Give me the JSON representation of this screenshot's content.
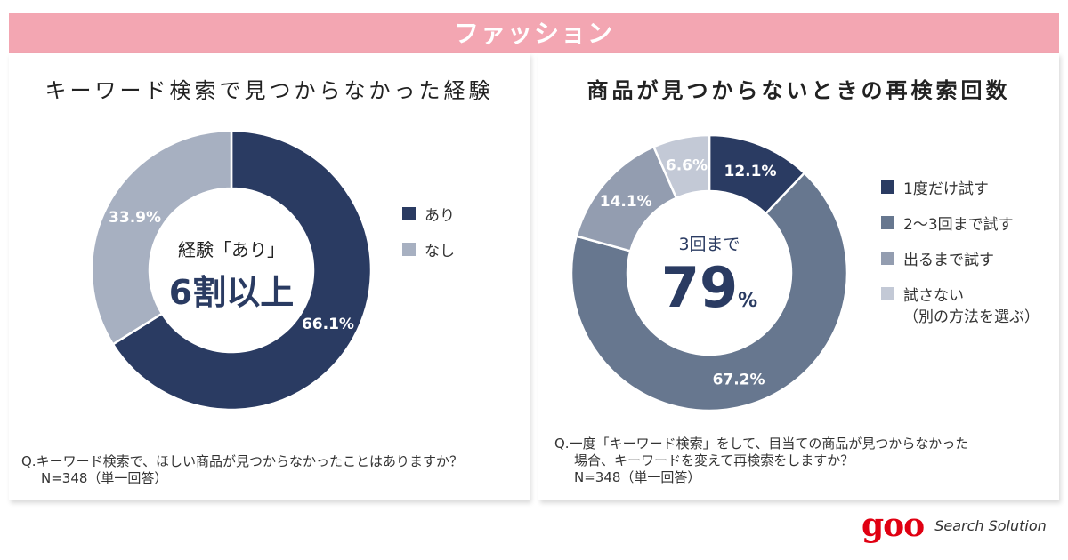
{
  "banner": "ファッション",
  "chart_data": [
    {
      "type": "pie",
      "donut": true,
      "title": "キーワード検索で見つからなかった経験",
      "categories": [
        "あり",
        "なし"
      ],
      "values": [
        66.1,
        33.9
      ],
      "labels": [
        "66.1%",
        "33.9%"
      ],
      "colors": [
        "#2a3b62",
        "#a7b0c1"
      ],
      "legend_position": "right",
      "center_text": {
        "line1": "経験「あり」",
        "line2": "6割以上"
      },
      "question": [
        "Q.キーワード検索で、ほしい商品が見つからなかったことはありますか？",
        "N=348（単一回答）"
      ]
    },
    {
      "type": "pie",
      "donut": true,
      "title": "商品が見つからないときの再検索回数",
      "categories": [
        "1度だけ試す",
        "2～3回まで試す",
        "出るまで試す",
        "試さない"
      ],
      "legend_sub": "（別の方法を選ぶ）",
      "values": [
        12.1,
        67.2,
        14.1,
        6.6
      ],
      "labels": [
        "12.1%",
        "67.2%",
        "14.1%",
        "6.6%"
      ],
      "colors": [
        "#2a3b62",
        "#67778f",
        "#939db0",
        "#c3c9d6"
      ],
      "legend_position": "right",
      "center_text": {
        "line1": "3回まで",
        "line2": "79",
        "unit": "%"
      },
      "question": [
        "Q.一度「キーワード検索」をして、目当ての商品が見つからなかった",
        "場合、キーワードを変えて再検索をしますか？",
        "N=348（単一回答）"
      ]
    }
  ],
  "footer": {
    "logo": "goo",
    "tagline": "Search Solution"
  }
}
